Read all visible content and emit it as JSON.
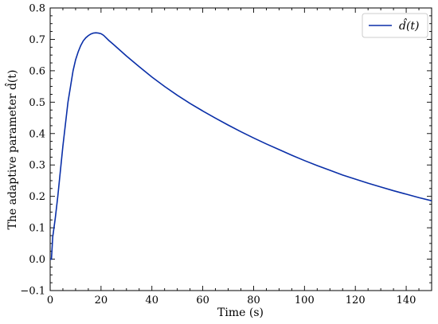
{
  "chart_data": {
    "type": "line",
    "xlabel": "Time (s)",
    "ylabel": "The adaptive parameter d̂(t)",
    "xlim": [
      0,
      150
    ],
    "ylim": [
      -0.1,
      0.8
    ],
    "x_ticks": [
      0,
      20,
      40,
      60,
      80,
      100,
      120,
      140
    ],
    "y_ticks": [
      -0.1,
      0.0,
      0.1,
      0.2,
      0.3,
      0.4,
      0.5,
      0.6,
      0.7,
      0.8
    ],
    "x_tick_labels": [
      "0",
      "20",
      "40",
      "60",
      "80",
      "100",
      "120",
      "140"
    ],
    "y_tick_labels": [
      "−0.1",
      "0.0",
      "0.1",
      "0.2",
      "0.3",
      "0.4",
      "0.5",
      "0.6",
      "0.7",
      "0.8"
    ],
    "grid": false,
    "legend_position": "top-right",
    "series": [
      {
        "name": "d̂(t)",
        "color": "#0a2fa8",
        "x": [
          0,
          0.5,
          1,
          2,
          3,
          4,
          5,
          6,
          7,
          8,
          9,
          10,
          11,
          12,
          13,
          14,
          15,
          16,
          17,
          18,
          19,
          20,
          21,
          22,
          23,
          25,
          30,
          35,
          40,
          45,
          50,
          55,
          60,
          65,
          70,
          75,
          80,
          85,
          90,
          95,
          100,
          105,
          110,
          115,
          120,
          125,
          130,
          135,
          140,
          145,
          150
        ],
        "y": [
          0.0,
          0.0,
          0.07,
          0.13,
          0.2,
          0.28,
          0.36,
          0.43,
          0.5,
          0.55,
          0.6,
          0.635,
          0.66,
          0.68,
          0.695,
          0.705,
          0.712,
          0.717,
          0.72,
          0.721,
          0.72,
          0.718,
          0.713,
          0.705,
          0.697,
          0.683,
          0.647,
          0.613,
          0.58,
          0.55,
          0.522,
          0.496,
          0.472,
          0.449,
          0.427,
          0.406,
          0.386,
          0.367,
          0.349,
          0.331,
          0.314,
          0.298,
          0.283,
          0.268,
          0.255,
          0.242,
          0.23,
          0.218,
          0.207,
          0.196,
          0.186
        ]
      }
    ]
  }
}
